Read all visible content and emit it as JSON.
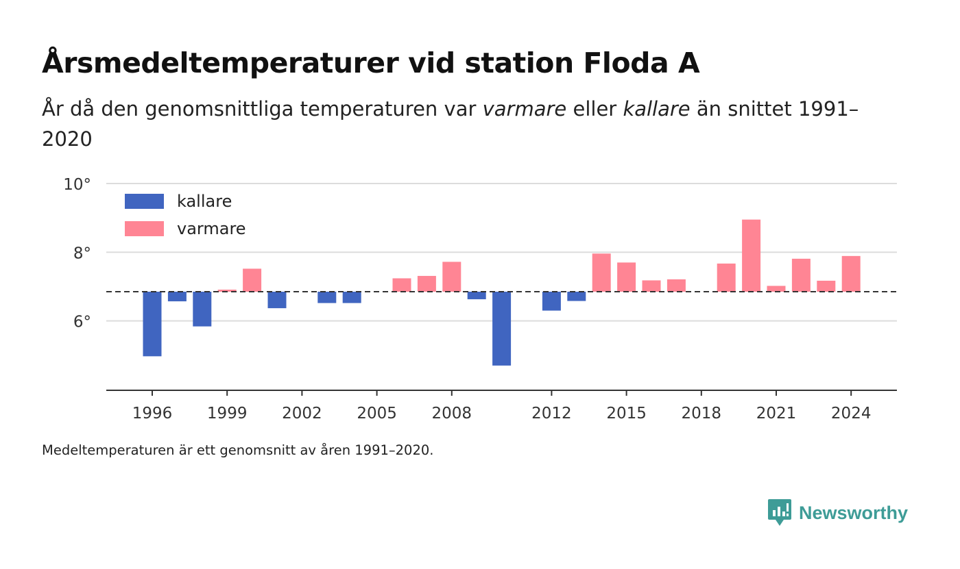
{
  "title": "Årsmedeltemperaturer vid station Floda A",
  "subtitle": {
    "part1": "År då den genomsnittliga temperaturen var ",
    "warm_word": "varmare",
    "part2": " eller ",
    "cold_word": "kallare",
    "part3": " än snittet 1991–2020"
  },
  "note": "Medeltemperaturen är ett genomsnitt av åren 1991–2020.",
  "brand": {
    "name": "Newsworthy",
    "icon": "newsworthy-logo-icon",
    "color": "#3e9c97"
  },
  "chart_data": {
    "type": "bar",
    "baseline": 6.85,
    "ylim": [
      4,
      10
    ],
    "yticks": [
      6,
      8,
      10
    ],
    "ytick_labels": [
      "6°",
      "8°",
      "10°"
    ],
    "xticks": [
      1996,
      1999,
      2002,
      2005,
      2008,
      2012,
      2015,
      2018,
      2021,
      2024
    ],
    "grid": true,
    "legend_position": "top-left",
    "colors": {
      "kallare": "#4065c0",
      "varmare": "#ff8594"
    },
    "legend": [
      {
        "key": "kallare",
        "label": "kallare"
      },
      {
        "key": "varmare",
        "label": "varmare"
      }
    ],
    "years": [
      1996,
      1997,
      1998,
      1999,
      2000,
      2001,
      2002,
      2003,
      2004,
      2005,
      2006,
      2007,
      2008,
      2009,
      2010,
      2011,
      2012,
      2013,
      2014,
      2015,
      2016,
      2017,
      2018,
      2019,
      2020,
      2021,
      2022,
      2023,
      2024
    ],
    "values": [
      4.97,
      6.57,
      5.84,
      6.91,
      7.52,
      6.37,
      null,
      6.52,
      6.52,
      null,
      7.24,
      7.31,
      7.72,
      6.63,
      4.7,
      null,
      6.3,
      6.58,
      7.96,
      7.7,
      7.18,
      7.21,
      null,
      7.67,
      8.95,
      7.02,
      7.81,
      7.17,
      7.89
    ]
  }
}
